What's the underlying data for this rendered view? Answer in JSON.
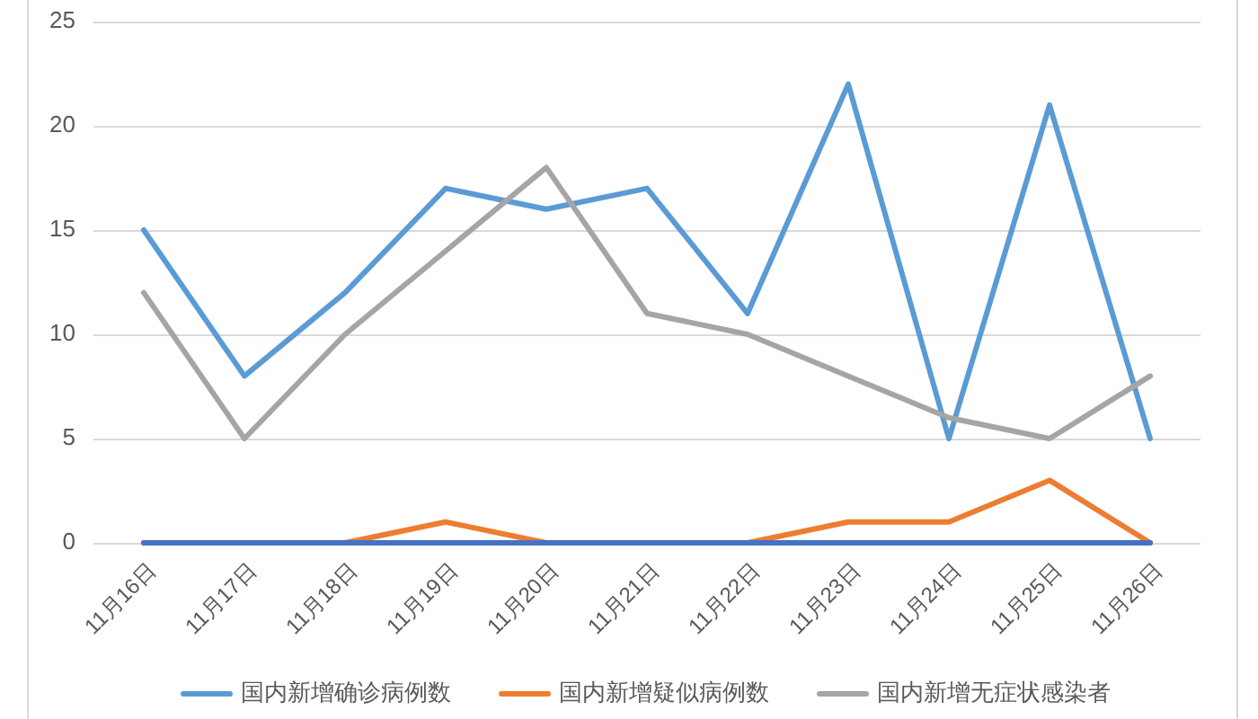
{
  "chart_data": {
    "type": "line",
    "categories": [
      "11月16日",
      "11月17日",
      "11月18日",
      "11月19日",
      "11月20日",
      "11月21日",
      "11月22日",
      "11月23日",
      "11月24日",
      "11月25日",
      "11月26日"
    ],
    "series": [
      {
        "name": "国内新增确诊病例数",
        "color": "#5b9bd5",
        "values": [
          15,
          8,
          12,
          17,
          16,
          17,
          11,
          22,
          5,
          21,
          5
        ]
      },
      {
        "name": "国内新增疑似病例数",
        "color": "#ed7d31",
        "values": [
          0,
          0,
          0,
          1,
          0,
          0,
          0,
          1,
          1,
          3,
          0
        ]
      },
      {
        "name": "国内新增无症状感染者",
        "color": "#a5a5a5",
        "values": [
          12,
          5,
          10,
          14,
          18,
          11,
          10,
          8,
          6,
          5,
          8
        ]
      },
      {
        "color": "#4472c4",
        "values": [
          0,
          0,
          0,
          0,
          0,
          0,
          0,
          0,
          0,
          0,
          0
        ]
      }
    ],
    "ylim": [
      0,
      25
    ],
    "yticks": [
      0,
      5,
      10,
      15,
      20,
      25
    ],
    "grid": "y",
    "legend": "bottom",
    "line_style": "solid"
  }
}
